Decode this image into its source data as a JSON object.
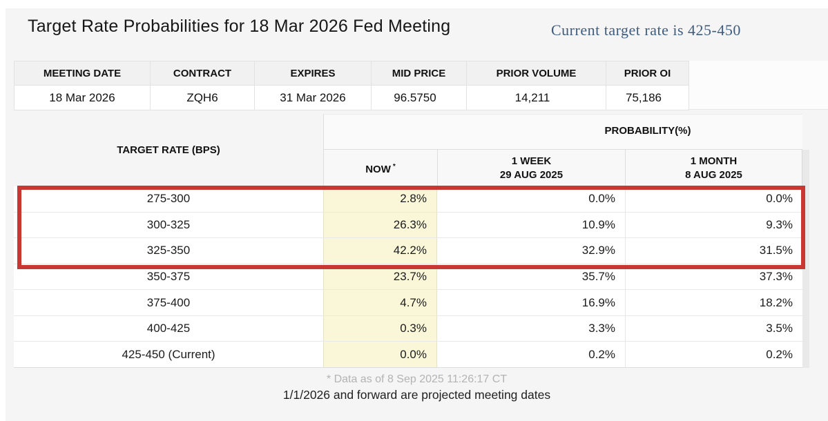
{
  "header": {
    "title": "Target Rate Probabilities for 18 Mar 2026 Fed Meeting",
    "current_rate_note": "Current target rate is 425-450"
  },
  "contract_table": {
    "columns": [
      "MEETING DATE",
      "CONTRACT",
      "EXPIRES",
      "MID PRICE",
      "PRIOR VOLUME",
      "PRIOR OI"
    ],
    "row": {
      "meeting_date": "18 Mar 2026",
      "contract": "ZQH6",
      "expires": "31 Mar 2026",
      "mid_price": "96.5750",
      "prior_volume": "14,211",
      "prior_oi": "75,186"
    }
  },
  "prob_table": {
    "target_rate_header": "TARGET RATE (BPS)",
    "probability_header": "PROBABILITY(%)",
    "now_label": "NOW",
    "now_asterisk": "*",
    "week_label": "1 WEEK",
    "week_date": "29 AUG 2025",
    "month_label": "1 MONTH",
    "month_date": "8 AUG 2025",
    "rows": [
      {
        "range": "275-300",
        "now": "2.8%",
        "week": "0.0%",
        "month": "0.0%"
      },
      {
        "range": "300-325",
        "now": "26.3%",
        "week": "10.9%",
        "month": "9.3%"
      },
      {
        "range": "325-350",
        "now": "42.2%",
        "week": "32.9%",
        "month": "31.5%"
      },
      {
        "range": "350-375",
        "now": "23.7%",
        "week": "35.7%",
        "month": "37.3%"
      },
      {
        "range": "375-400",
        "now": "4.7%",
        "week": "16.9%",
        "month": "18.2%"
      },
      {
        "range": "400-425",
        "now": "0.3%",
        "week": "3.3%",
        "month": "3.5%"
      },
      {
        "range": "425-450 (Current)",
        "now": "0.0%",
        "week": "0.2%",
        "month": "0.2%"
      }
    ],
    "highlighted_ranges": [
      "275-300",
      "300-325",
      "325-350"
    ]
  },
  "footer": {
    "data_as_of": "* Data as of 8 Sep 2025 11:26:17 CT",
    "projection_note": "1/1/2026 and forward are projected meeting dates"
  },
  "colors": {
    "accent_red": "#c93732",
    "now_column_bg": "#faf7d8",
    "current_rate_text": "#3d5c80",
    "panel_bg": "#f5f5f5"
  }
}
